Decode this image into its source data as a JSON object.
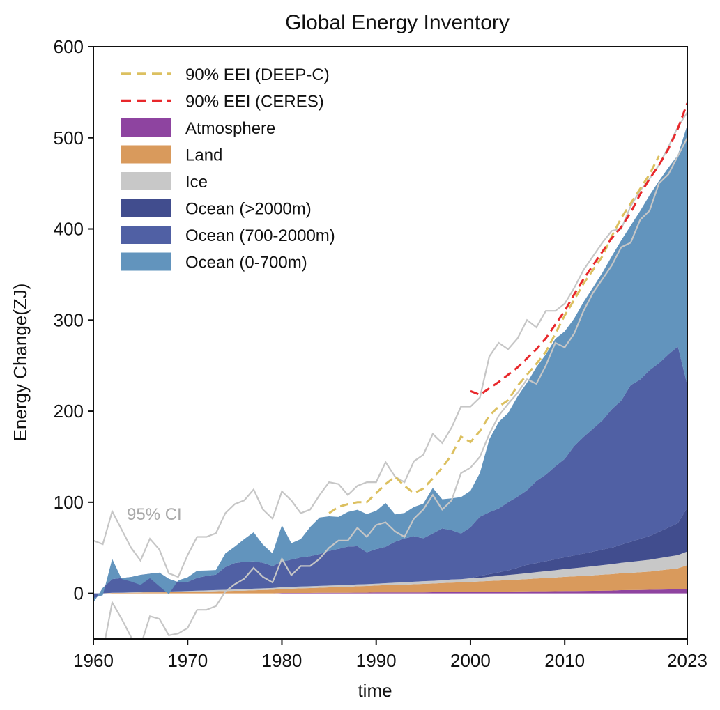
{
  "chart_data": {
    "type": "area",
    "title": "Global Energy Inventory",
    "xlabel": "time",
    "ylabel": "Energy Change(ZJ)",
    "xlim": [
      1960,
      2023
    ],
    "ylim": [
      -50,
      600
    ],
    "xticks": [
      1960,
      1970,
      1980,
      1990,
      2000,
      2010,
      2023
    ],
    "yticks": [
      0,
      100,
      200,
      300,
      400,
      500,
      600
    ],
    "legend_position": "top-left",
    "ci_label": "95% CI",
    "x": [
      1960,
      1961,
      1962,
      1963,
      1964,
      1965,
      1966,
      1967,
      1968,
      1969,
      1970,
      1971,
      1972,
      1973,
      1974,
      1975,
      1976,
      1977,
      1978,
      1979,
      1980,
      1981,
      1982,
      1983,
      1984,
      1985,
      1986,
      1987,
      1988,
      1989,
      1990,
      1991,
      1992,
      1993,
      1994,
      1995,
      1996,
      1997,
      1998,
      1999,
      2000,
      2001,
      2002,
      2003,
      2004,
      2005,
      2006,
      2007,
      2008,
      2009,
      2010,
      2011,
      2012,
      2013,
      2014,
      2015,
      2016,
      2017,
      2018,
      2019,
      2020,
      2021,
      2022,
      2023
    ],
    "series": [
      {
        "name": "Atmosphere",
        "color": "#8e44a0",
        "values": [
          0,
          0,
          0,
          0,
          0,
          0,
          0,
          0,
          0,
          0,
          0,
          0,
          0,
          0,
          0,
          0,
          0,
          0,
          0,
          0,
          0.5,
          0.5,
          0.5,
          0.5,
          0.6,
          0.6,
          0.6,
          0.7,
          0.8,
          0.8,
          1,
          1,
          1,
          1,
          1,
          1.1,
          1.2,
          1.3,
          1.5,
          1.5,
          1.6,
          1.7,
          1.8,
          1.9,
          2,
          2.1,
          2.2,
          2.3,
          2.3,
          2.4,
          2.6,
          2.6,
          2.7,
          2.8,
          3,
          3.1,
          3.5,
          3.6,
          3.7,
          3.9,
          4.1,
          4.3,
          4.5,
          5
        ]
      },
      {
        "name": "Land",
        "color": "#d99a5c",
        "values": [
          0,
          0,
          0.5,
          0.5,
          0.6,
          0.8,
          1,
          1,
          1.2,
          1.4,
          1.6,
          1.8,
          2,
          2.3,
          2.5,
          2.8,
          3,
          3.4,
          3.7,
          4,
          4.3,
          4.6,
          5,
          5.3,
          5.6,
          6,
          6.3,
          6.6,
          7,
          7.3,
          7.6,
          8,
          8.3,
          8.6,
          9,
          9.3,
          9.6,
          10,
          10.3,
          10.6,
          11,
          11.4,
          11.8,
          12.2,
          12.6,
          13,
          13.5,
          14,
          14.5,
          15,
          15.5,
          16,
          16.5,
          17,
          17.5,
          18,
          18.5,
          19,
          19.5,
          20,
          21,
          22,
          23,
          26
        ]
      },
      {
        "name": "Ice",
        "color": "#c8c8c8",
        "values": [
          0,
          0,
          0.2,
          0.3,
          0.4,
          0.5,
          0.6,
          0.7,
          0.8,
          0.9,
          1,
          1.1,
          1.2,
          1.3,
          1.4,
          1.5,
          1.6,
          1.7,
          1.8,
          1.9,
          2,
          2,
          2,
          2,
          2,
          2,
          2,
          2,
          2,
          2,
          2,
          2.2,
          2.4,
          2.6,
          2.8,
          3,
          3,
          3,
          3.5,
          3.5,
          4,
          4,
          4.5,
          5,
          5.5,
          6,
          6.5,
          7,
          7.5,
          8,
          8.5,
          9,
          9.5,
          10,
          10.5,
          11,
          11.5,
          12,
          12.5,
          13,
          13.5,
          14,
          14.5,
          15
        ]
      },
      {
        "name": "Ocean (>2000m)",
        "color": "#414d8e",
        "values": [
          0,
          0,
          0,
          0,
          0,
          0,
          0,
          0,
          0,
          0,
          0,
          0,
          0,
          0,
          0,
          0,
          0,
          0,
          0,
          0,
          0,
          0,
          0,
          0,
          0,
          0,
          0,
          0,
          0,
          0,
          0,
          0,
          0,
          0,
          0,
          0,
          0,
          0,
          0,
          0,
          0,
          2,
          3,
          4,
          5,
          7,
          9,
          10,
          11,
          12,
          13,
          14,
          15,
          16,
          17,
          18,
          20,
          22,
          24,
          26,
          29,
          32,
          35,
          48
        ]
      },
      {
        "name": "Ocean (700-2000m)",
        "color": "#5060a4",
        "values": [
          -10,
          6,
          15,
          16,
          17,
          19,
          20,
          21,
          14,
          10,
          10,
          14,
          16,
          17,
          25,
          29,
          30,
          30,
          28,
          24,
          28,
          30,
          32,
          33,
          35,
          38,
          40,
          42,
          42,
          35,
          38,
          40,
          45,
          48,
          50,
          47,
          52,
          57,
          54,
          50,
          56,
          65,
          68,
          70,
          75,
          78,
          82,
          90,
          95,
          102,
          108,
          120,
          128,
          135,
          142,
          152,
          158,
          172,
          175,
          182,
          185,
          190,
          194,
          135
        ]
      },
      {
        "name": "Ocean (0-700m)",
        "color": "#6294bd",
        "values": [
          5,
          -8,
          22,
          -1,
          -5,
          -11,
          -5,
          -15,
          -17,
          2,
          5,
          8,
          6,
          5,
          15,
          18,
          25,
          32,
          20,
          14,
          40,
          18,
          20,
          32,
          40,
          38,
          35,
          38,
          40,
          42,
          42,
          48,
          30,
          28,
          32,
          38,
          50,
          32,
          35,
          40,
          40,
          48,
          80,
          95,
          98,
          110,
          118,
          125,
          132,
          140,
          140,
          140,
          148,
          155,
          162,
          168,
          176,
          175,
          185,
          192,
          200,
          205,
          210,
          285
        ]
      }
    ],
    "ci_upper_offset": [
      58,
      54,
      90,
      70,
      50,
      36,
      60,
      48,
      22,
      18,
      42,
      62,
      62,
      66,
      88,
      98,
      102,
      114,
      92,
      82,
      112,
      102,
      88,
      92,
      108,
      122,
      120,
      108,
      118,
      122,
      122,
      144,
      128,
      122,
      145,
      152,
      175,
      165,
      182,
      205,
      205,
      215,
      260,
      275,
      268,
      280,
      300,
      292,
      310,
      310,
      318,
      335,
      355,
      370,
      385,
      398,
      400,
      425,
      442,
      455,
      470,
      490,
      512,
      528
    ],
    "ci_lower_offset": [
      -60,
      -64,
      -10,
      -28,
      -48,
      -58,
      -25,
      -28,
      -46,
      -44,
      -38,
      -18,
      -18,
      -14,
      2,
      10,
      16,
      28,
      18,
      12,
      38,
      20,
      30,
      30,
      38,
      50,
      58,
      58,
      72,
      62,
      75,
      78,
      68,
      62,
      82,
      92,
      108,
      92,
      102,
      132,
      138,
      150,
      175,
      195,
      208,
      220,
      235,
      230,
      250,
      275,
      270,
      285,
      310,
      330,
      345,
      360,
      380,
      385,
      410,
      420,
      450,
      460,
      480,
      500
    ],
    "eei_deepc": {
      "name": "90% EEI (DEEP-C)",
      "color": "#dcc060",
      "x": [
        1985,
        1986,
        1987,
        1988,
        1989,
        1990,
        1991,
        1992,
        1993,
        1994,
        1995,
        1996,
        1997,
        1998,
        1999,
        2000,
        2001,
        2002,
        2003,
        2004,
        2005,
        2006,
        2007,
        2008,
        2009,
        2010,
        2011,
        2012,
        2013,
        2014,
        2015,
        2016,
        2017,
        2018,
        2019,
        2020
      ],
      "values": [
        88,
        95,
        98,
        100,
        100,
        110,
        120,
        128,
        118,
        110,
        115,
        126,
        138,
        152,
        172,
        166,
        178,
        195,
        205,
        212,
        228,
        240,
        252,
        265,
        285,
        305,
        322,
        340,
        355,
        370,
        392,
        412,
        428,
        444,
        460,
        480
      ]
    },
    "eei_ceres": {
      "name": "90% EEI (CERES)",
      "color": "#e8282b",
      "x": [
        2000,
        2001,
        2002,
        2003,
        2004,
        2005,
        2006,
        2007,
        2008,
        2009,
        2010,
        2011,
        2012,
        2013,
        2014,
        2015,
        2016,
        2017,
        2018,
        2019,
        2020,
        2021,
        2022,
        2023
      ],
      "values": [
        222,
        218,
        225,
        232,
        240,
        248,
        258,
        268,
        280,
        295,
        310,
        328,
        345,
        360,
        375,
        390,
        402,
        418,
        438,
        455,
        470,
        488,
        510,
        538
      ]
    }
  }
}
